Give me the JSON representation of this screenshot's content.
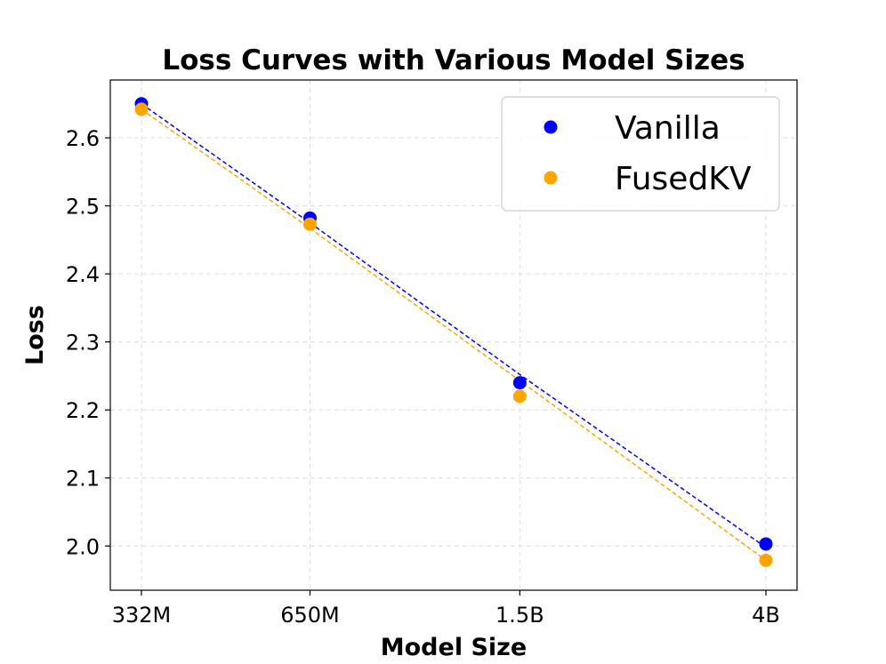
{
  "chart_data": {
    "type": "scatter",
    "title": "Loss Curves with Various Model Sizes",
    "xlabel": "Model Size",
    "ylabel": "Loss",
    "x": [
      332,
      650,
      1500,
      4000
    ],
    "x_scale": "log",
    "x_unit": "M params",
    "x_tick_labels": [
      "332M",
      "650M",
      "1.5B",
      "4B"
    ],
    "ylim": [
      1.935,
      2.685
    ],
    "y_ticks": [
      2.0,
      2.1,
      2.2,
      2.3,
      2.4,
      2.5,
      2.6
    ],
    "y_tick_labels": [
      "2.0",
      "2.1",
      "2.2",
      "2.3",
      "2.4",
      "2.5",
      "2.6"
    ],
    "grid": true,
    "legend_position": "top-right",
    "series": [
      {
        "name": "Vanilla",
        "color": "#0000ff",
        "values": [
          2.65,
          2.482,
          2.24,
          2.003
        ],
        "fit_line": [
          2.65,
          2.475,
          2.252,
          1.998
        ]
      },
      {
        "name": "FusedKV",
        "color": "#ffa500",
        "values": [
          2.642,
          2.473,
          2.22,
          1.979
        ],
        "fit_line": [
          2.642,
          2.467,
          2.243,
          1.979
        ]
      }
    ]
  }
}
